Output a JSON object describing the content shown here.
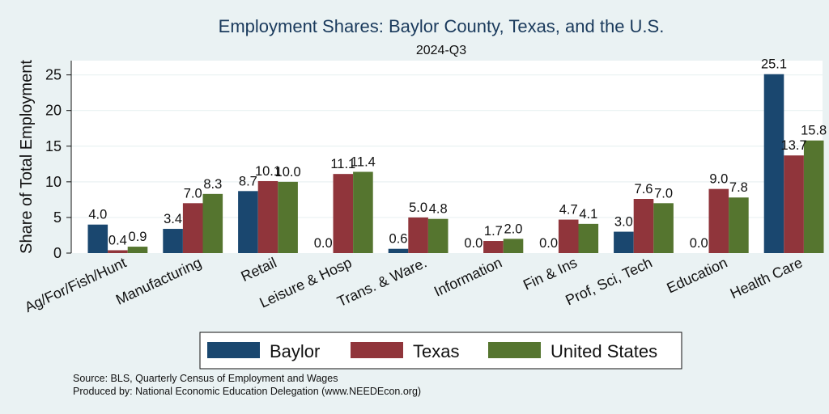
{
  "chart_data": {
    "type": "bar",
    "title": "Employment Shares: Baylor County, Texas, and the U.S.",
    "subtitle": "2024-Q3",
    "xlabel": "",
    "ylabel": "Share of Total Employment",
    "ylim": [
      0,
      27
    ],
    "yticks": [
      0,
      5,
      10,
      15,
      20,
      25
    ],
    "grid": true,
    "legend_position": "bottom",
    "categories": [
      "Ag/For/Fish/Hunt",
      "Manufacturing",
      "Retail",
      "Leisure & Hosp",
      "Trans. & Ware.",
      "Information",
      "Fin & Ins",
      "Prof, Sci, Tech",
      "Education",
      "Health Care"
    ],
    "series": [
      {
        "name": "Baylor",
        "color": "#1a476f",
        "values": [
          4.0,
          3.4,
          8.7,
          0.0,
          0.6,
          0.0,
          0.0,
          3.0,
          0.0,
          25.1
        ]
      },
      {
        "name": "Texas",
        "color": "#90353b",
        "values": [
          0.4,
          7.0,
          10.1,
          11.1,
          5.0,
          1.7,
          4.7,
          7.6,
          9.0,
          13.7
        ]
      },
      {
        "name": "United States",
        "color": "#55752f",
        "values": [
          0.9,
          8.3,
          10.0,
          11.4,
          4.8,
          2.0,
          4.1,
          7.0,
          7.8,
          15.8
        ]
      }
    ]
  },
  "notes": {
    "source": "Source: BLS, Quarterly Census of Employment and Wages",
    "produced_by": "Produced by: National Economic Education Delegation (www.NEEDEcon.org)"
  }
}
